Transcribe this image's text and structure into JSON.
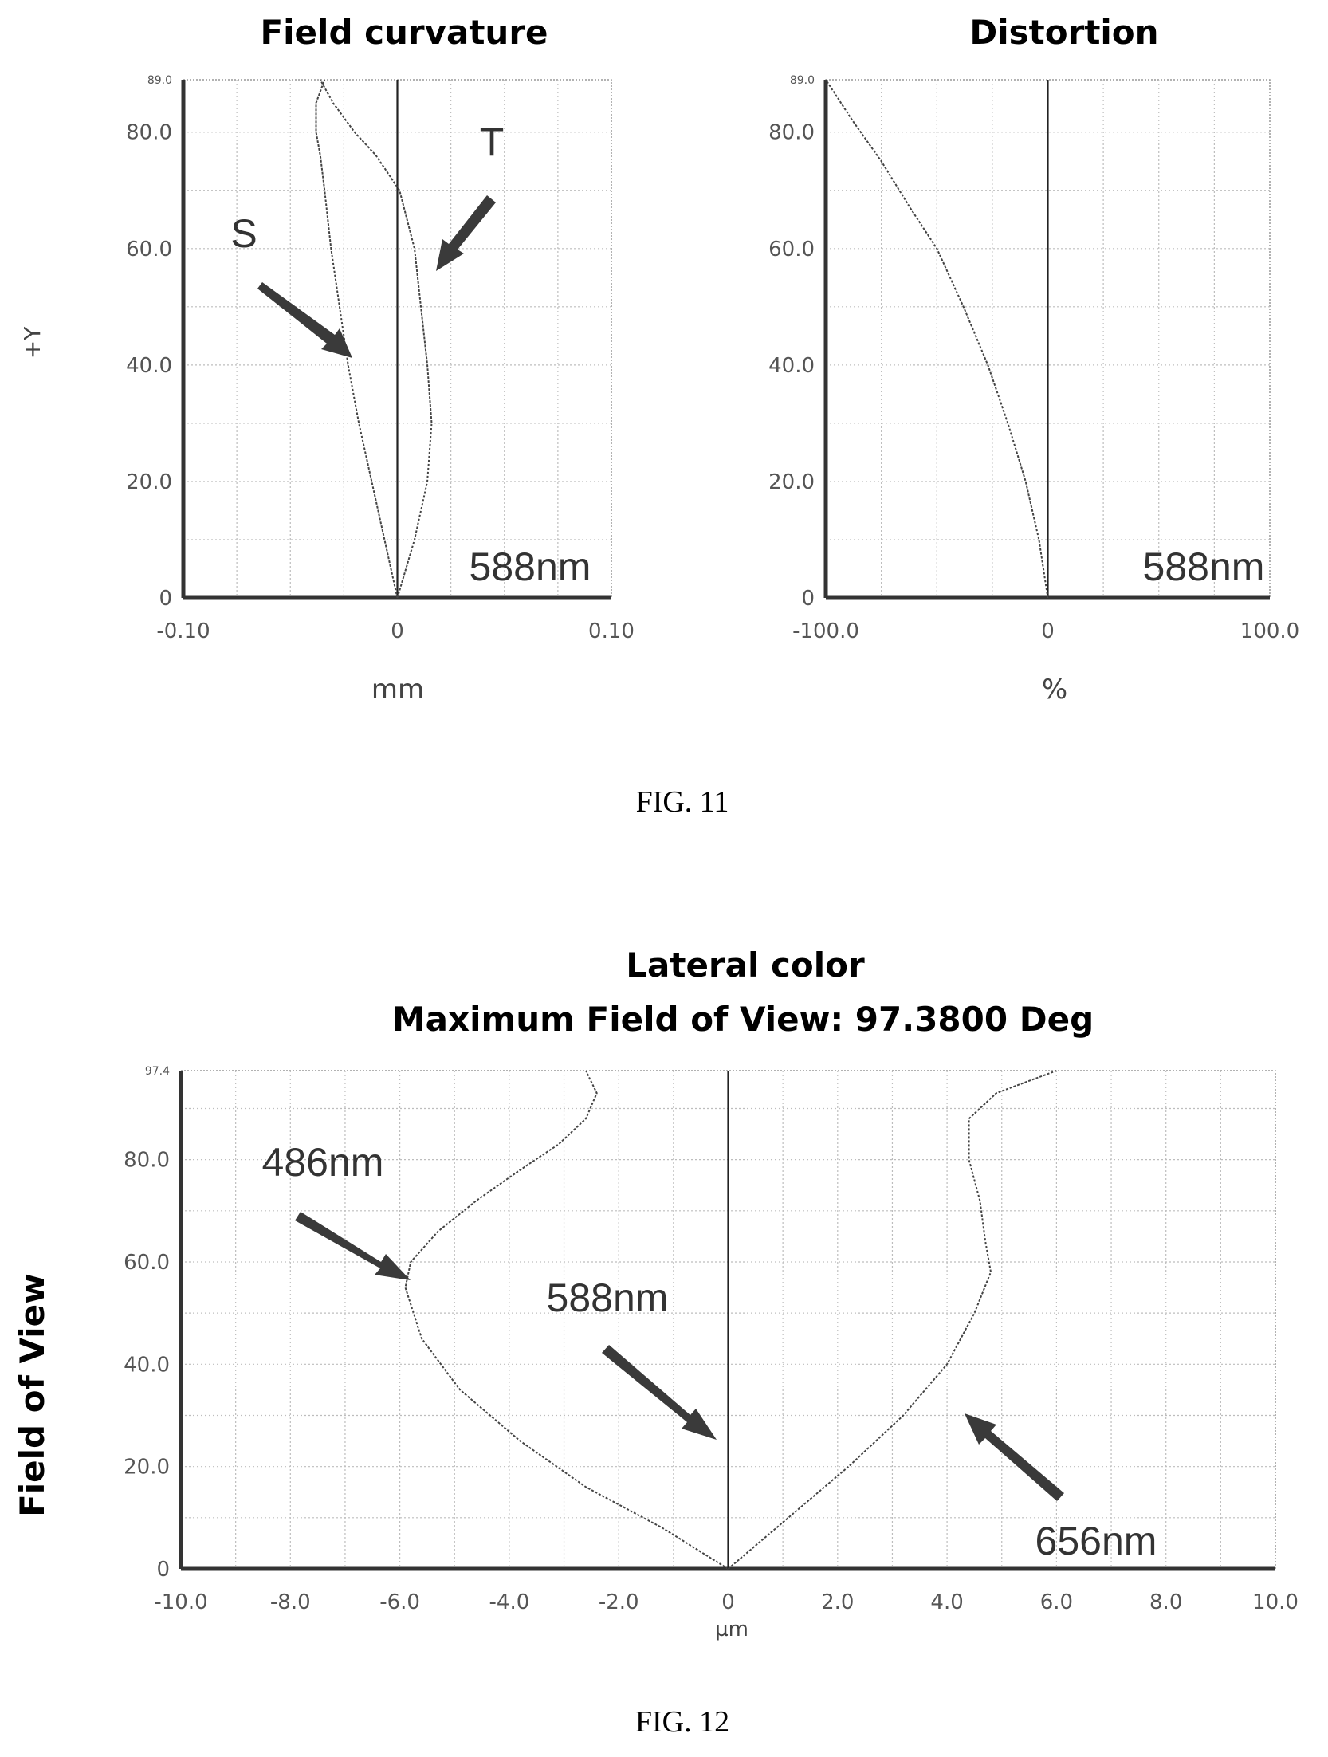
{
  "chart_data": [
    {
      "type": "line",
      "title": "Field curvature",
      "xlabel": "mm",
      "ylabel": "+Y",
      "xlim": [
        -0.1,
        0.1
      ],
      "ylim": [
        0,
        89.0
      ],
      "x_ticks": [
        "-0.10",
        "0",
        "0.10"
      ],
      "y_ticks": [
        "0",
        "20.0",
        "40.0",
        "60.0",
        "80.0",
        "89.0"
      ],
      "grid": true,
      "series": [
        {
          "name": "S",
          "x": [
            0.0,
            -0.006,
            -0.012,
            -0.018,
            -0.023,
            -0.027,
            -0.031,
            -0.034,
            -0.036,
            -0.038,
            -0.038,
            -0.034
          ],
          "y": [
            0,
            10,
            20,
            30,
            40,
            50,
            60,
            70,
            76,
            80,
            85,
            89
          ]
        },
        {
          "name": "T",
          "x": [
            0.0,
            0.008,
            0.014,
            0.016,
            0.014,
            0.011,
            0.008,
            0.001,
            -0.01,
            -0.02,
            -0.03,
            -0.036
          ],
          "y": [
            0,
            10,
            20,
            30,
            40,
            50,
            60,
            70,
            76,
            80,
            85,
            89
          ]
        }
      ],
      "annotations": [
        "S",
        "T",
        "588nm"
      ]
    },
    {
      "type": "line",
      "title": "Distortion",
      "xlabel": "%",
      "xlim": [
        -100.0,
        100.0
      ],
      "ylim": [
        0,
        89.0
      ],
      "x_ticks": [
        "-100.0",
        "0",
        "100.0"
      ],
      "y_ticks": [
        "0",
        "20.0",
        "40.0",
        "60.0",
        "80.0",
        "89.0"
      ],
      "grid": true,
      "series": [
        {
          "x": [
            0,
            -4,
            -10,
            -18,
            -27,
            -38,
            -50,
            -62,
            -75,
            -88,
            -100
          ],
          "y": [
            0,
            10,
            20,
            30,
            40,
            50,
            60,
            67,
            75,
            82,
            89
          ]
        }
      ],
      "annotations": [
        "588nm"
      ]
    },
    {
      "type": "line",
      "title": "Lateral color",
      "subtitle": "Maximum Field of View: 97.3800 Deg",
      "xlabel": "µm",
      "ylabel": "Field of View",
      "xlim": [
        -10.0,
        10.0
      ],
      "ylim": [
        0,
        97.4
      ],
      "x_ticks": [
        "-10.0",
        "-8.0",
        "-6.0",
        "-4.0",
        "-2.0",
        "0",
        "2.0",
        "4.0",
        "6.0",
        "8.0",
        "10.0"
      ],
      "y_ticks": [
        "0",
        "20.0",
        "40.0",
        "60.0",
        "80.0",
        "97.4"
      ],
      "grid": true,
      "series": [
        {
          "name": "486nm",
          "x": [
            0,
            -1.2,
            -2.6,
            -3.8,
            -4.9,
            -5.6,
            -5.9,
            -5.8,
            -5.3,
            -4.6,
            -3.8,
            -3.1,
            -2.6,
            -2.4,
            -2.6
          ],
          "y": [
            0,
            8,
            16,
            25,
            35,
            45,
            55,
            60,
            66,
            72,
            78,
            83,
            88,
            93,
            97.4
          ]
        },
        {
          "name": "588nm",
          "x": [
            0,
            0
          ],
          "y": [
            0,
            97.4
          ]
        },
        {
          "name": "656nm",
          "x": [
            0,
            1.1,
            2.2,
            3.2,
            4.0,
            4.5,
            4.8,
            4.7,
            4.6,
            4.4,
            4.4,
            4.9,
            6.0
          ],
          "y": [
            0,
            10,
            20,
            30,
            40,
            50,
            58,
            64,
            72,
            80,
            88,
            93,
            97.4
          ]
        }
      ],
      "annotations": [
        "486nm",
        "588nm",
        "656nm"
      ]
    }
  ],
  "captions": {
    "fig11": "FIG. 11",
    "fig12": "FIG. 12"
  }
}
